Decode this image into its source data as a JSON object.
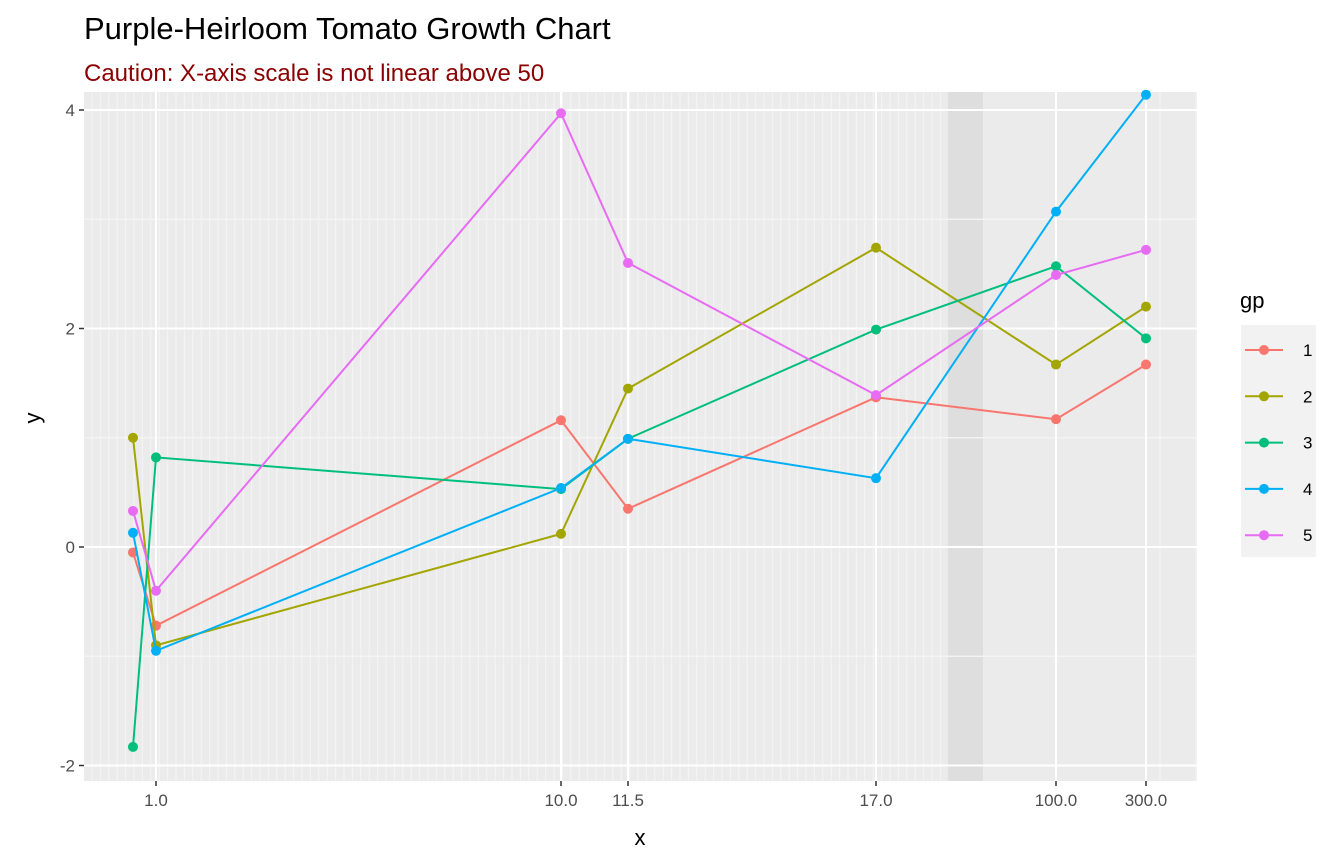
{
  "chart_data": {
    "type": "line",
    "title": "Purple-Heirloom Tomato Growth Chart",
    "subtitle": "Caution: X-axis scale is not linear above 50",
    "xlabel": "x",
    "ylabel": "y",
    "x_ticks": [
      "1.0",
      "10.0",
      "11.5",
      "17.0",
      "100.0",
      "300.0"
    ],
    "y_ticks": [
      -2,
      0,
      2,
      4
    ],
    "ylim": [
      -2.2,
      4.4
    ],
    "x": [
      0.9,
      1.0,
      10.0,
      11.5,
      17.0,
      100.0,
      300.0
    ],
    "legend_title": "gp",
    "legend_position": "right",
    "grid": true,
    "shaded_band_note": "non-linear region marker between 17 and 100",
    "series": [
      {
        "name": "1",
        "color": "#F8766D",
        "values": [
          -0.05,
          -0.72,
          1.16,
          0.35,
          1.37,
          1.17,
          1.67
        ]
      },
      {
        "name": "2",
        "color": "#A3A500",
        "values": [
          1.0,
          -0.9,
          0.12,
          1.45,
          2.74,
          1.67,
          2.2
        ]
      },
      {
        "name": "3",
        "color": "#00BF7D",
        "values": [
          -1.83,
          0.82,
          0.53,
          0.99,
          1.99,
          2.57,
          1.91
        ]
      },
      {
        "name": "4",
        "color": "#00B0F6",
        "values": [
          0.13,
          -0.95,
          0.54,
          0.99,
          0.63,
          3.07,
          4.14
        ]
      },
      {
        "name": "5",
        "color": "#E76BF3",
        "values": [
          0.33,
          -0.4,
          3.97,
          2.6,
          1.39,
          2.49,
          2.72
        ]
      }
    ]
  }
}
